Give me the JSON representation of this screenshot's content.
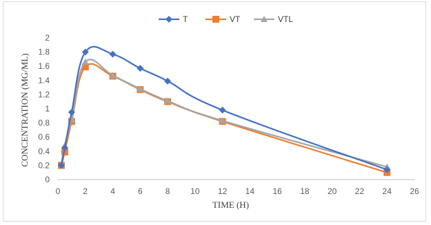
{
  "chart_data": {
    "type": "line",
    "title": "",
    "xlabel": "TIME (H)",
    "ylabel": "CONCENTRATION (MG/ML)",
    "xlim": [
      0,
      26
    ],
    "ylim": [
      0,
      2
    ],
    "xticks": [
      0,
      2,
      4,
      6,
      8,
      10,
      12,
      14,
      16,
      18,
      20,
      22,
      24,
      26
    ],
    "xtick_labels": [
      "0",
      "2",
      "4",
      "6",
      "8",
      "10",
      "12",
      "14",
      "16",
      "18",
      "20",
      "22",
      "24",
      "26"
    ],
    "yticks": [
      0,
      0.2,
      0.4,
      0.6,
      0.8,
      1,
      1.2,
      1.4,
      1.6,
      1.8,
      2
    ],
    "ytick_labels": [
      "0",
      "0.2",
      "0.4",
      "0.6",
      "0.8",
      "1",
      "1.2",
      "1.4",
      "1.6",
      "1.8",
      "2"
    ],
    "grid": false,
    "legend_position": "top",
    "smooth": true,
    "x": [
      0.25,
      0.5,
      1,
      2,
      4,
      6,
      8,
      12,
      24
    ],
    "series": [
      {
        "name": "T",
        "color": "#4472C4",
        "marker": "diamond",
        "values": [
          0.2,
          0.45,
          0.95,
          1.8,
          1.77,
          1.57,
          1.39,
          0.98,
          0.14
        ]
      },
      {
        "name": "VT",
        "color": "#ED7D31",
        "marker": "square",
        "values": [
          0.2,
          0.39,
          0.82,
          1.59,
          1.46,
          1.27,
          1.1,
          0.82,
          0.1
        ]
      },
      {
        "name": "VTL",
        "color": "#A5A5A5",
        "marker": "triangle",
        "values": [
          0.22,
          0.48,
          0.85,
          1.66,
          1.47,
          1.28,
          1.11,
          0.83,
          0.18
        ]
      }
    ]
  }
}
